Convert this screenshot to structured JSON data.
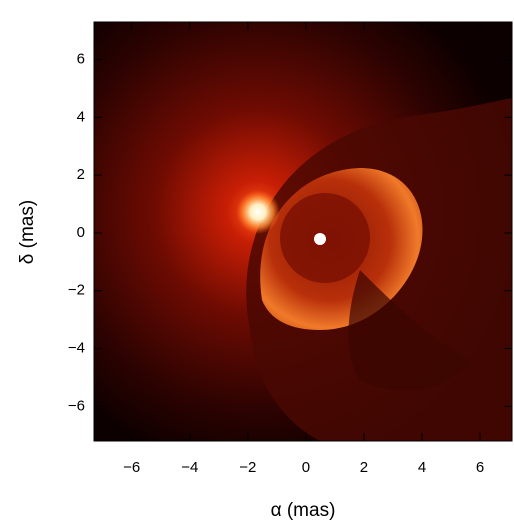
{
  "chart_data": {
    "type": "image",
    "xlabel": "α (mas)",
    "ylabel": "δ (mas)",
    "xlim": [
      -7.3,
      7.1
    ],
    "ylim": [
      -7.2,
      7.3
    ],
    "xticks": [
      {
        "value": -6,
        "label": "−6"
      },
      {
        "value": -4,
        "label": "−4"
      },
      {
        "value": -2,
        "label": "−2"
      },
      0,
      2,
      4,
      6
    ],
    "yticks": [
      {
        "value": -6,
        "label": "−6"
      },
      {
        "value": -4,
        "label": "−4"
      },
      {
        "value": -2,
        "label": "−2"
      },
      0,
      2,
      4,
      6
    ]
  }
}
